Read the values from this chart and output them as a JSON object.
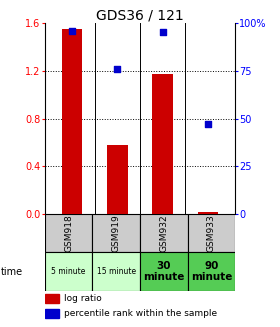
{
  "title": "GDS36 / 121",
  "samples": [
    "GSM918",
    "GSM919",
    "GSM932",
    "GSM933"
  ],
  "time_labels": [
    "5 minute",
    "15 minute",
    "30\nminute",
    "90\nminute"
  ],
  "log_ratios": [
    1.55,
    0.58,
    1.17,
    0.02
  ],
  "percentile_ranks": [
    96,
    76,
    95,
    47
  ],
  "left_ylim": [
    0,
    1.6
  ],
  "right_ylim": [
    0,
    100
  ],
  "left_yticks": [
    0,
    0.4,
    0.8,
    1.2,
    1.6
  ],
  "right_yticks": [
    0,
    25,
    50,
    75,
    100
  ],
  "right_yticklabels": [
    "0",
    "25",
    "50",
    "75",
    "100%"
  ],
  "bar_color": "#cc0000",
  "dot_color": "#0000cc",
  "bar_width": 0.45,
  "sample_bg_color": "#cccccc",
  "time_bg_light": "#ccffcc",
  "time_bg_dark": "#55cc55",
  "legend_bar_label": "log ratio",
  "legend_dot_label": "percentile rank within the sample"
}
